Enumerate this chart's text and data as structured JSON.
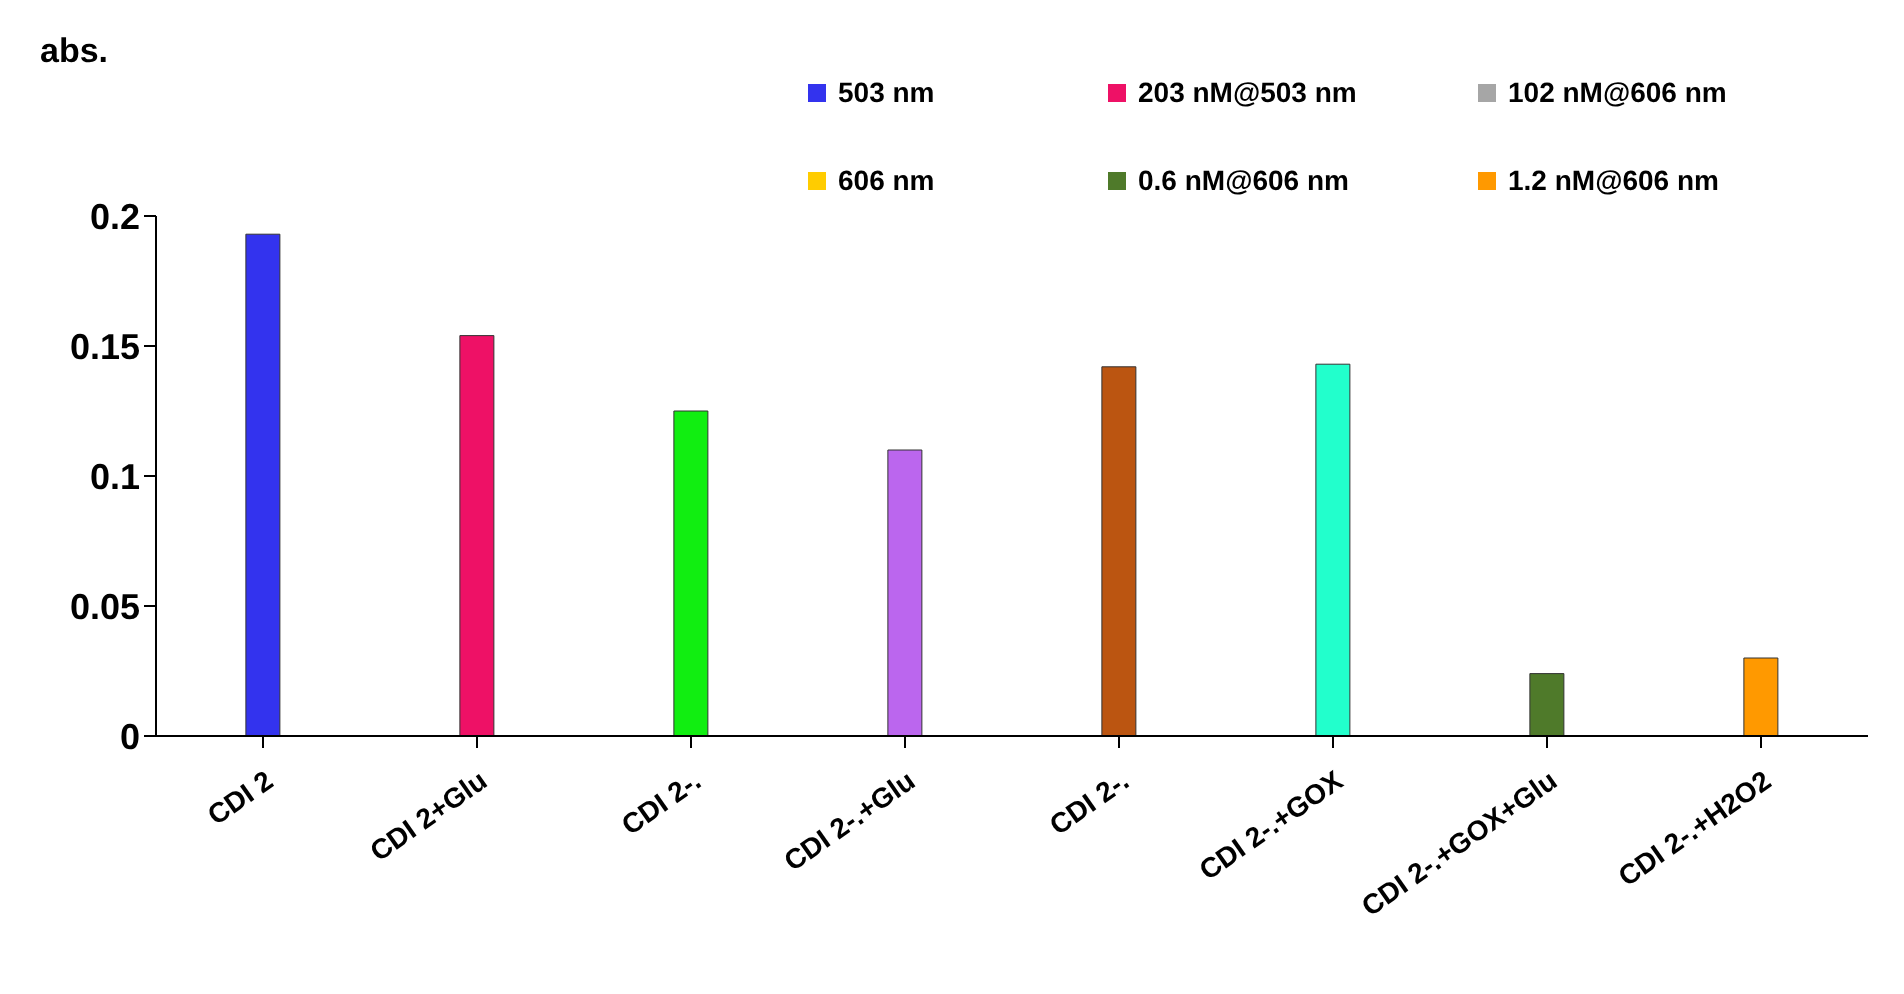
{
  "chart_data": {
    "type": "bar",
    "ylabel": "abs.",
    "stacked": true,
    "categories": [
      "CDI 2",
      "CDI 2+Glu",
      "CDI 2-.",
      "CDI 2-.+Glu",
      "CDI 2-.",
      "CDI 2-.+GOX",
      "CDI 2-.+GOX+Glu",
      "CDI 2-.+H2O2"
    ],
    "series": [
      {
        "name": "503 nm",
        "color": "#3333ee",
        "values": [
          0.193,
          null,
          null,
          null,
          null,
          null,
          null,
          null
        ]
      },
      {
        "name": "203 nM@503 nm",
        "color": "#ee1166",
        "values": [
          null,
          0.154,
          null,
          null,
          null,
          null,
          null,
          null
        ]
      },
      {
        "name": "102 nM@606 nm",
        "color": "#a6a6a6",
        "values": [
          null,
          null,
          null,
          null,
          null,
          null,
          null,
          null
        ]
      },
      {
        "name": "606 nm",
        "color": "#ffcc00",
        "values": [
          null,
          null,
          null,
          null,
          null,
          null,
          null,
          null
        ]
      },
      {
        "name": "0.6 nM@606 nm",
        "color": "#4f7a2a",
        "values": [
          null,
          null,
          null,
          null,
          null,
          null,
          0.024,
          null
        ]
      },
      {
        "name": "1.2 nM@606 nm",
        "color": "#ff9900",
        "values": [
          null,
          null,
          null,
          null,
          null,
          null,
          null,
          0.03
        ]
      },
      {
        "color": "#11ee11",
        "values": [
          null,
          null,
          0.125,
          null,
          null,
          null,
          null,
          null
        ]
      },
      {
        "color": "#bb66ee",
        "values": [
          null,
          null,
          null,
          0.11,
          null,
          null,
          null,
          null
        ]
      },
      {
        "color": "#bb5511",
        "values": [
          null,
          null,
          null,
          null,
          0.142,
          null,
          null,
          null
        ]
      },
      {
        "color": "#22ffcc",
        "values": [
          null,
          null,
          null,
          null,
          null,
          0.143,
          null,
          null
        ]
      }
    ],
    "ylim": [
      0,
      0.2
    ],
    "yticks": [
      0,
      0.05,
      0.1,
      0.15,
      0.2
    ],
    "legend": "top right"
  }
}
